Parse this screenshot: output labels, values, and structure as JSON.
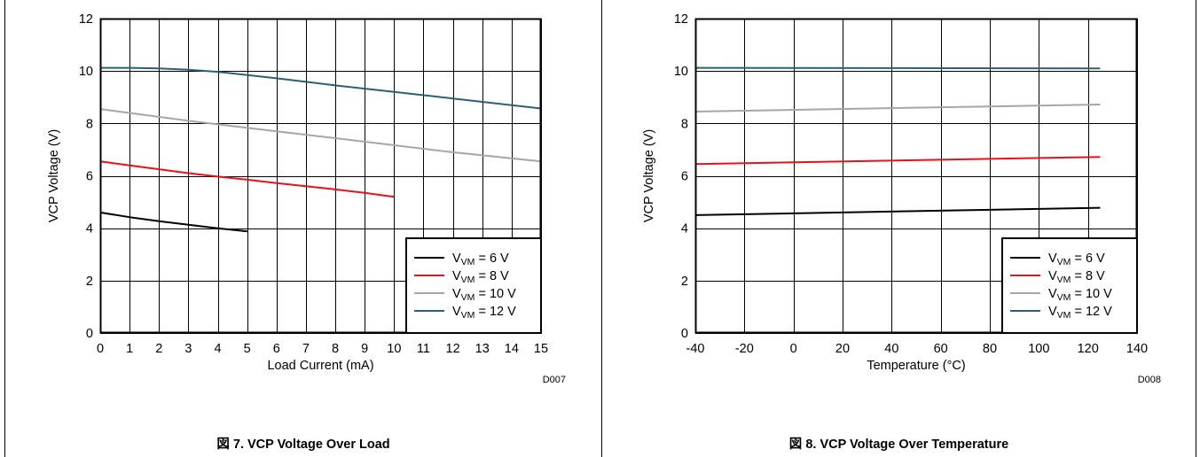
{
  "page_colors": {
    "background": "#ffffff",
    "border": "#000000"
  },
  "chart_data": [
    {
      "type": "line",
      "id": "D007",
      "xlabel": "Load Current (mA)",
      "ylabel": "VCP Voltage (V)",
      "xlim": [
        0,
        15
      ],
      "ylim": [
        0,
        12
      ],
      "xticks": [
        0,
        1,
        2,
        3,
        4,
        5,
        6,
        7,
        8,
        9,
        10,
        11,
        12,
        13,
        14,
        15
      ],
      "yticks": [
        0,
        2,
        4,
        6,
        8,
        10,
        12
      ],
      "grid": true,
      "legend": "bottom-right",
      "caption": "図 7. VCP Voltage Over Load",
      "series": [
        {
          "name": "V_VM = 6 V",
          "legend_prefix": "V",
          "legend_sub": "VM",
          "legend_suffix": " = 6 V",
          "color": "#000000",
          "x": [
            0,
            1,
            2,
            3,
            4,
            5
          ],
          "y": [
            4.6,
            4.42,
            4.27,
            4.13,
            4.0,
            3.88
          ]
        },
        {
          "name": "V_VM = 8 V",
          "legend_prefix": "V",
          "legend_sub": "VM",
          "legend_suffix": " = 8 V",
          "color": "#e8101a",
          "x": [
            0,
            1,
            2,
            3,
            4,
            5,
            6,
            7,
            8,
            9,
            10
          ],
          "y": [
            6.55,
            6.4,
            6.25,
            6.1,
            5.97,
            5.85,
            5.72,
            5.6,
            5.48,
            5.35,
            5.2
          ]
        },
        {
          "name": "V_VM = 10 V",
          "legend_prefix": "V",
          "legend_sub": "VM",
          "legend_suffix": " = 10 V",
          "color": "#a6a6a6",
          "x": [
            0,
            3,
            6,
            9,
            12,
            15
          ],
          "y": [
            8.55,
            8.1,
            7.7,
            7.3,
            6.9,
            6.55
          ]
        },
        {
          "name": "V_VM = 12 V",
          "legend_prefix": "V",
          "legend_sub": "VM",
          "legend_suffix": " = 12 V",
          "color": "#2e5e73",
          "x": [
            0,
            1,
            2,
            3,
            4,
            6,
            8,
            10,
            12,
            15
          ],
          "y": [
            10.12,
            10.12,
            10.1,
            10.05,
            9.97,
            9.72,
            9.45,
            9.2,
            8.95,
            8.57
          ]
        }
      ]
    },
    {
      "type": "line",
      "id": "D008",
      "xlabel": "Temperature (°C)",
      "ylabel": "VCP Voltage (V)",
      "xlim": [
        -40,
        140
      ],
      "ylim": [
        0,
        12
      ],
      "xticks": [
        -40,
        -20,
        0,
        20,
        40,
        60,
        80,
        100,
        120,
        140
      ],
      "yticks": [
        0,
        2,
        4,
        6,
        8,
        10,
        12
      ],
      "grid": true,
      "legend": "bottom-right",
      "caption": "図 8. VCP Voltage Over Temperature",
      "series": [
        {
          "name": "V_VM = 6 V",
          "legend_prefix": "V",
          "legend_sub": "VM",
          "legend_suffix": " = 6 V",
          "color": "#000000",
          "x": [
            -40,
            125
          ],
          "y": [
            4.5,
            4.78
          ]
        },
        {
          "name": "V_VM = 8 V",
          "legend_prefix": "V",
          "legend_sub": "VM",
          "legend_suffix": " = 8 V",
          "color": "#e8101a",
          "x": [
            -40,
            125
          ],
          "y": [
            6.45,
            6.72
          ]
        },
        {
          "name": "V_VM = 10 V",
          "legend_prefix": "V",
          "legend_sub": "VM",
          "legend_suffix": " = 10 V",
          "color": "#a6a6a6",
          "x": [
            -40,
            125
          ],
          "y": [
            8.45,
            8.72
          ]
        },
        {
          "name": "V_VM = 12 V",
          "legend_prefix": "V",
          "legend_sub": "VM",
          "legend_suffix": " = 12 V",
          "color": "#2e5e73",
          "x": [
            -40,
            125
          ],
          "y": [
            10.12,
            10.1
          ]
        }
      ]
    }
  ]
}
